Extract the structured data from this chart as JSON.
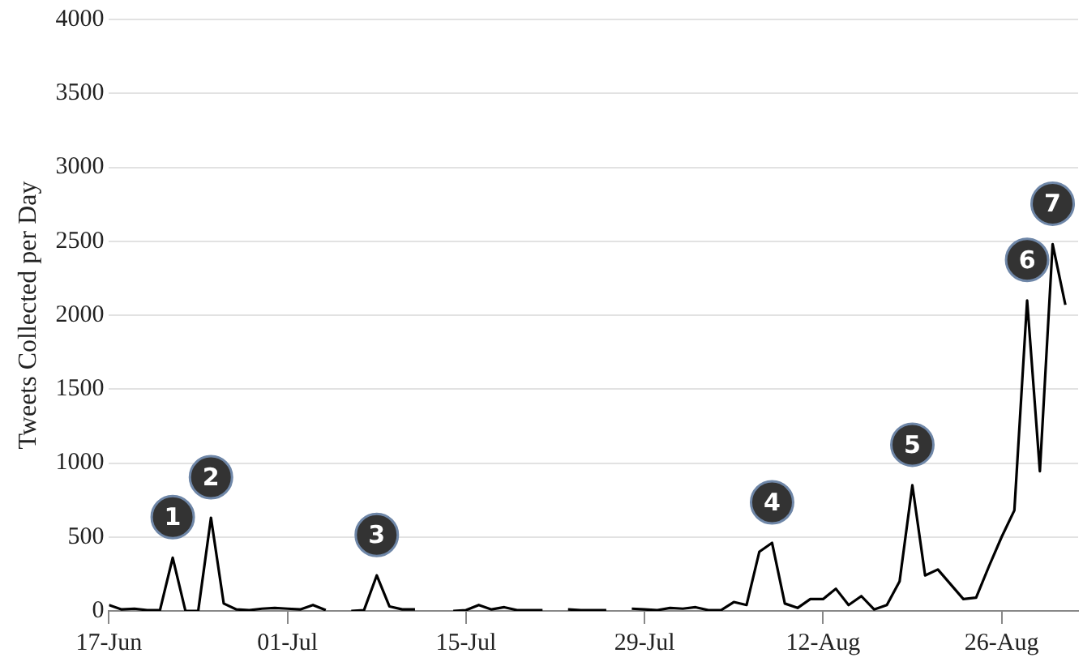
{
  "chart_data": {
    "type": "line",
    "ylabel": "Tweets Collected per Day",
    "x": [
      "--06-17",
      "--06-18",
      "--06-19",
      "--06-20",
      "--06-21",
      "--06-22",
      "--06-23",
      "--06-24",
      "--06-25",
      "--06-26",
      "--06-27",
      "--06-28",
      "--06-29",
      "--06-30",
      "--07-01",
      "--07-02",
      "--07-03",
      "--07-04",
      "--07-05",
      "--07-06",
      "--07-07",
      "--07-08",
      "--07-09",
      "--07-10",
      "--07-11",
      "--07-12",
      "--07-13",
      "--07-14",
      "--07-15",
      "--07-16",
      "--07-17",
      "--07-18",
      "--07-19",
      "--07-20",
      "--07-21",
      "--07-22",
      "--07-23",
      "--07-24",
      "--07-25",
      "--07-26",
      "--07-27",
      "--07-28",
      "--07-29",
      "--07-30",
      "--07-31",
      "--08-01",
      "--08-02",
      "--08-03",
      "--08-04",
      "--08-05",
      "--08-06",
      "--08-07",
      "--08-08",
      "--08-09",
      "--08-10",
      "--08-11",
      "--08-12",
      "--08-13",
      "--08-14",
      "--08-15",
      "--08-16",
      "--08-17",
      "--08-18",
      "--08-19",
      "--08-20",
      "--08-21",
      "--08-22",
      "--08-23",
      "--08-24",
      "--08-25",
      "--08-26",
      "--08-27",
      "--08-28",
      "--08-29",
      "--08-30",
      "--08-31"
    ],
    "series": [
      {
        "color": "#000000",
        "values": [
          40,
          10,
          15,
          5,
          5,
          360,
          0,
          0,
          630,
          50,
          10,
          5,
          15,
          20,
          15,
          10,
          40,
          5,
          null,
          0,
          5,
          240,
          30,
          10,
          10,
          null,
          null,
          0,
          5,
          40,
          10,
          25,
          5,
          5,
          5,
          null,
          10,
          5,
          5,
          5,
          null,
          15,
          10,
          5,
          20,
          15,
          25,
          5,
          5,
          60,
          40,
          400,
          460,
          50,
          20,
          80,
          80,
          150,
          40,
          100,
          10,
          40,
          200,
          850,
          240,
          280,
          180,
          80,
          90,
          300,
          500,
          680,
          2100,
          945,
          2480,
          2070
        ]
      }
    ],
    "xlim": [
      "--06-17",
      "--09-01"
    ],
    "xticks": [
      {
        "value": "--06-17",
        "label": "17-Jun"
      },
      {
        "value": "--07-01",
        "label": "01-Jul"
      },
      {
        "value": "--07-15",
        "label": "15-Jul"
      },
      {
        "value": "--07-29",
        "label": "29-Jul"
      },
      {
        "value": "--08-12",
        "label": "12-Aug"
      },
      {
        "value": "--08-26",
        "label": "26-Aug"
      }
    ],
    "ylim": [
      0,
      4000
    ],
    "yticks": [
      0,
      500,
      1000,
      1500,
      2000,
      2500,
      3000,
      3500,
      4000
    ],
    "grid": "y",
    "legend": false,
    "marker": "none",
    "line_style": "solid",
    "annotations": [
      {
        "text": "1",
        "x": "--06-22",
        "y": 360
      },
      {
        "text": "2",
        "x": "--06-25",
        "y": 630
      },
      {
        "text": "3",
        "x": "--07-08",
        "y": 240
      },
      {
        "text": "4",
        "x": "--08-08",
        "y": 460
      },
      {
        "text": "5",
        "x": "--08-19",
        "y": 850
      },
      {
        "text": "6",
        "x": "--08-28",
        "y": 2100
      },
      {
        "text": "7",
        "x": "--08-30",
        "y": 2480
      }
    ]
  }
}
